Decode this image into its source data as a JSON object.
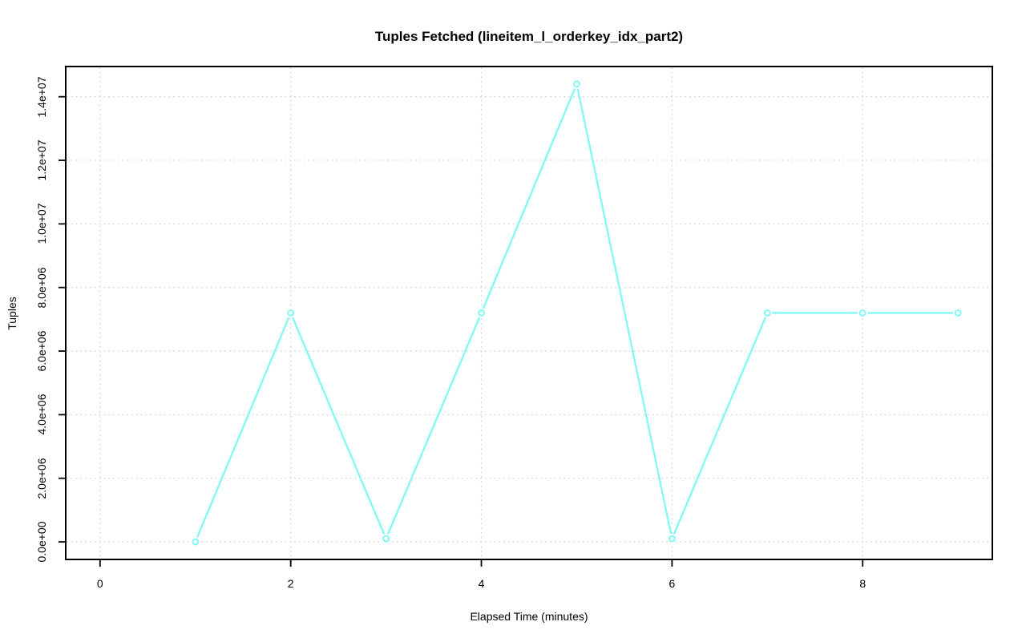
{
  "chart_data": {
    "type": "line",
    "title": "Tuples Fetched (lineitem_l_orderkey_idx_part2)",
    "xlabel": "Elapsed Time (minutes)",
    "ylabel": "Tuples",
    "x": [
      1,
      2,
      3,
      4,
      5,
      6,
      7,
      8,
      9
    ],
    "y": [
      0,
      7200000,
      100000,
      7200000,
      14400000,
      100000,
      7200000,
      7200000,
      7200000
    ],
    "x_ticks": [
      {
        "value": 0,
        "label": "0"
      },
      {
        "value": 2,
        "label": "2"
      },
      {
        "value": 4,
        "label": "4"
      },
      {
        "value": 6,
        "label": "6"
      },
      {
        "value": 8,
        "label": "8"
      }
    ],
    "y_ticks": [
      {
        "value": 0,
        "label": "0.0e+00"
      },
      {
        "value": 2000000,
        "label": "2.0e+06"
      },
      {
        "value": 4000000,
        "label": "4.0e+06"
      },
      {
        "value": 6000000,
        "label": "6.0e+06"
      },
      {
        "value": 8000000,
        "label": "8.0e+06"
      },
      {
        "value": 10000000,
        "label": "1.0e+07"
      },
      {
        "value": 12000000,
        "label": "1.2e+07"
      },
      {
        "value": 14000000,
        "label": "1.4e+07"
      }
    ],
    "xlim": [
      -0.36,
      9.36
    ],
    "ylim": [
      -553000,
      14950000
    ],
    "grid": true,
    "grid_style": "dotted",
    "legend": null,
    "marker": "open-circle",
    "colors": {
      "line": "#80F9F2",
      "marker": "#80F9F2",
      "grid": "#d2d2d2",
      "axis": "#000000",
      "text": "#000000",
      "background": "#ffffff"
    }
  }
}
